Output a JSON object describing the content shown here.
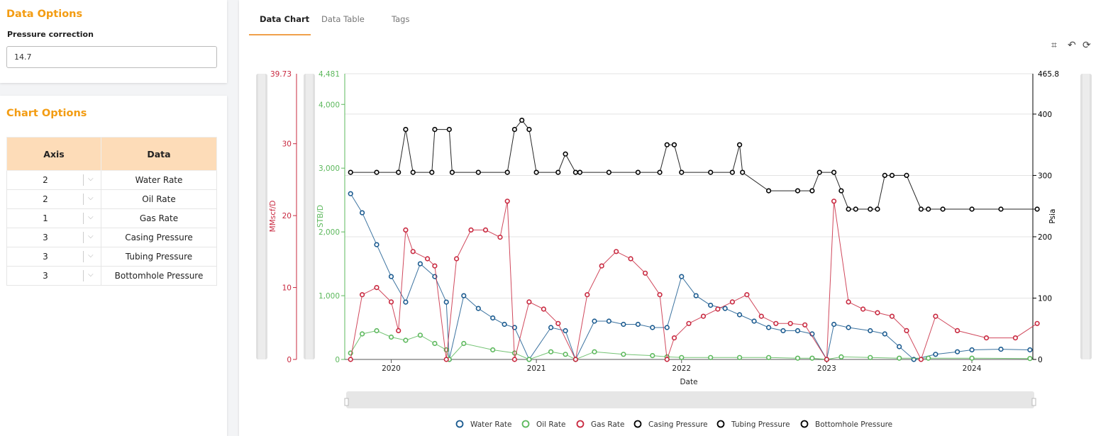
{
  "data_options": {
    "title": "Data Options",
    "pressure_label": "Pressure correction",
    "pressure_value": "14.7"
  },
  "chart_options": {
    "title": "Chart Options",
    "headers": {
      "axis": "Axis",
      "data": "Data"
    },
    "rows": [
      {
        "axis": "2",
        "data": "Water Rate"
      },
      {
        "axis": "2",
        "data": "Oil Rate"
      },
      {
        "axis": "1",
        "data": "Gas Rate"
      },
      {
        "axis": "3",
        "data": "Casing Pressure"
      },
      {
        "axis": "3",
        "data": "Tubing Pressure"
      },
      {
        "axis": "3",
        "data": "Bottomhole Pressure"
      }
    ]
  },
  "tabs": {
    "chart": "Data Chart",
    "table": "Data Table",
    "tags": "Tags"
  },
  "toolbar": {
    "zoom_icon": "crop-icon",
    "back_icon": "back-icon",
    "reset_icon": "refresh-icon"
  },
  "colors": {
    "water": "#1a5a8f",
    "oil": "#5cb85c",
    "gas": "#c8283f",
    "pressure": "#000000",
    "accent": "#f39c12"
  },
  "chart_data": {
    "type": "scatter",
    "xlabel": "Date",
    "x_ticks": [
      "2020",
      "2021",
      "2022",
      "2023",
      "2024"
    ],
    "xlim": [
      "2019-09",
      "2024-06"
    ],
    "axes": [
      {
        "id": 1,
        "label": "MMscf/D",
        "max_label": "39.73",
        "ticks": [
          "0",
          "10",
          "20",
          "30"
        ],
        "ylim": [
          0,
          39.73
        ]
      },
      {
        "id": 2,
        "label": "STB/D",
        "max_label": "4,481",
        "ticks": [
          "0",
          "1,000",
          "2,000",
          "3,000",
          "4,000"
        ],
        "ylim": [
          0,
          4481
        ]
      },
      {
        "id": 3,
        "label": "Psia",
        "max_label": "465.8",
        "ticks": [
          "0",
          "100",
          "200",
          "300",
          "400"
        ],
        "ylim": [
          0,
          465.8
        ]
      }
    ],
    "legend": [
      "Water Rate",
      "Oil Rate",
      "Gas Rate",
      "Casing Pressure",
      "Tubing Pressure",
      "Bottomhole Pressure"
    ],
    "series": [
      {
        "name": "Water Rate",
        "axis": 2,
        "x": [
          2019.72,
          2019.8,
          2019.9,
          2020.0,
          2020.1,
          2020.2,
          2020.3,
          2020.38,
          2020.4,
          2020.5,
          2020.6,
          2020.7,
          2020.78,
          2020.85,
          2020.95,
          2021.1,
          2021.2,
          2021.27,
          2021.4,
          2021.5,
          2021.6,
          2021.7,
          2021.8,
          2021.9,
          2022.0,
          2022.1,
          2022.2,
          2022.3,
          2022.4,
          2022.5,
          2022.6,
          2022.7,
          2022.8,
          2022.9,
          2023.0,
          2023.05,
          2023.15,
          2023.3,
          2023.4,
          2023.5,
          2023.6,
          2023.75,
          2023.9,
          2024.0,
          2024.2,
          2024.4
        ],
        "values": [
          2600,
          2300,
          1800,
          1300,
          900,
          1500,
          1300,
          900,
          0,
          1000,
          800,
          650,
          550,
          500,
          0,
          500,
          450,
          0,
          600,
          600,
          550,
          550,
          500,
          500,
          1300,
          1000,
          850,
          800,
          700,
          600,
          500,
          450,
          450,
          400,
          0,
          550,
          500,
          450,
          400,
          200,
          0,
          80,
          120,
          150,
          160,
          150
        ]
      },
      {
        "name": "Oil Rate",
        "axis": 2,
        "x": [
          2019.72,
          2019.8,
          2019.9,
          2020.0,
          2020.1,
          2020.2,
          2020.3,
          2020.38,
          2020.4,
          2020.5,
          2020.7,
          2020.85,
          2020.95,
          2021.1,
          2021.2,
          2021.27,
          2021.4,
          2021.6,
          2021.8,
          2021.9,
          2022.0,
          2022.2,
          2022.4,
          2022.6,
          2022.8,
          2022.9,
          2023.0,
          2023.1,
          2023.3,
          2023.5,
          2023.7,
          2024.0,
          2024.4
        ],
        "values": [
          100,
          400,
          450,
          350,
          300,
          380,
          250,
          150,
          0,
          250,
          150,
          100,
          0,
          120,
          80,
          0,
          120,
          80,
          60,
          40,
          30,
          30,
          30,
          30,
          20,
          20,
          0,
          40,
          30,
          20,
          20,
          20,
          15
        ]
      },
      {
        "name": "Gas Rate",
        "axis": 1,
        "x": [
          2019.72,
          2019.8,
          2019.9,
          2020.0,
          2020.05,
          2020.1,
          2020.15,
          2020.25,
          2020.3,
          2020.38,
          2020.45,
          2020.55,
          2020.65,
          2020.75,
          2020.8,
          2020.85,
          2020.95,
          2021.05,
          2021.15,
          2021.27,
          2021.35,
          2021.45,
          2021.55,
          2021.65,
          2021.75,
          2021.85,
          2021.9,
          2021.95,
          2022.05,
          2022.15,
          2022.25,
          2022.35,
          2022.45,
          2022.55,
          2022.65,
          2022.75,
          2022.85,
          2023.0,
          2023.05,
          2023.15,
          2023.25,
          2023.35,
          2023.45,
          2023.55,
          2023.65,
          2023.75,
          2023.9,
          2024.1,
          2024.3,
          2024.45
        ],
        "values": [
          0,
          9,
          10,
          8,
          4,
          18,
          15,
          14,
          13,
          0,
          14,
          18,
          18,
          17,
          22,
          0,
          8,
          7,
          5,
          0,
          9,
          13,
          15,
          14,
          12,
          9,
          0,
          3,
          5,
          6,
          7,
          8,
          9,
          6,
          5,
          5,
          4.8,
          0,
          22,
          8,
          7,
          6.5,
          6,
          4,
          0,
          6,
          4,
          3,
          3,
          5
        ]
      },
      {
        "name": "Casing Pressure",
        "axis": 3,
        "x": [
          2019.72,
          2019.9,
          2020.05,
          2020.1,
          2020.15,
          2020.28,
          2020.3,
          2020.4,
          2020.42,
          2020.6,
          2020.8,
          2020.85,
          2020.9,
          2020.95,
          2021.0,
          2021.15,
          2021.2,
          2021.27,
          2021.3,
          2021.5,
          2021.7,
          2021.85,
          2021.9,
          2021.95,
          2022.0,
          2022.2,
          2022.35,
          2022.4,
          2022.42,
          2022.6,
          2022.8,
          2022.9,
          2022.95,
          2023.05,
          2023.1,
          2023.15,
          2023.2,
          2023.3,
          2023.35,
          2023.4,
          2023.45,
          2023.55,
          2023.65,
          2023.7,
          2023.8,
          2024.0,
          2024.2,
          2024.45
        ],
        "values": [
          305,
          305,
          305,
          375,
          305,
          305,
          375,
          375,
          305,
          305,
          305,
          375,
          390,
          375,
          305,
          305,
          335,
          305,
          305,
          305,
          305,
          305,
          350,
          350,
          305,
          305,
          305,
          350,
          305,
          275,
          275,
          275,
          305,
          305,
          275,
          245,
          245,
          245,
          245,
          300,
          300,
          300,
          245,
          245,
          245,
          245,
          245,
          245
        ]
      }
    ]
  }
}
